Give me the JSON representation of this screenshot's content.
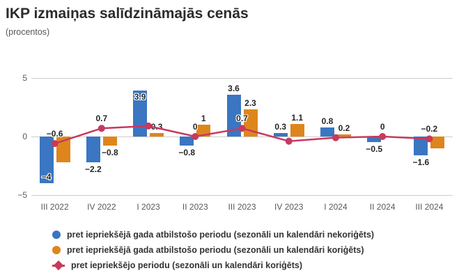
{
  "title": "IKP izmaiņas salīdzināmajās cenās",
  "subtitle": "(procentos)",
  "colors": {
    "blue": "#3a76c1",
    "orange": "#de861b",
    "red": "#c8395d",
    "grid": "#cccccc",
    "axis_text": "#595959",
    "label_text": "#262626"
  },
  "chart_data": {
    "type": "bar",
    "categories": [
      "III 2022",
      "IV 2022",
      "I 2023",
      "II 2023",
      "III 2023",
      "IV 2023",
      "I 2024",
      "II 2024",
      "III 2024"
    ],
    "y_axis": {
      "min": -5,
      "max": 5,
      "tick_values": [
        5,
        0,
        -5
      ],
      "tick_labels": [
        "5",
        "0",
        "−5"
      ]
    },
    "grid": "horizontal-only",
    "legend_position": "bottom-left",
    "series": [
      {
        "name": "pret iepriekšējā gada atbilstošo periodu (sezonāli un kalendāri nekoriģēts)",
        "type": "bar",
        "color_key": "blue",
        "values": [
          -4,
          -2.2,
          3.9,
          -0.8,
          3.6,
          0.3,
          0.8,
          -0.5,
          -1.6
        ],
        "labels": [
          "−4",
          "−2.2",
          "3.9",
          "−0.8",
          "3.6",
          "0.3",
          "0.8",
          "−0.5",
          "−1.6"
        ]
      },
      {
        "name": "pret iepriekšējā gada atbilstošo periodu (sezonāli un kalendāri koriģēts)",
        "type": "bar",
        "color_key": "orange",
        "values": [
          -2.2,
          -0.8,
          0.3,
          1,
          2.3,
          1.1,
          0.2,
          0,
          -1
        ],
        "labels": [
          null,
          "−0.8",
          "0.3",
          "1",
          "2.3",
          "1.1",
          "0.2",
          null,
          null
        ]
      },
      {
        "name": "pret iepriekšējo periodu (sezonāli un kalendāri koriģēts)",
        "type": "line",
        "color_key": "red",
        "values": [
          -0.6,
          0.7,
          0.9,
          0,
          0.7,
          -0.4,
          -0.1,
          0,
          -0.2
        ],
        "labels": [
          "−0.6",
          "0.7",
          null,
          "0",
          "0.7",
          null,
          null,
          "0",
          "−0.2"
        ]
      }
    ],
    "legend": [
      {
        "marker": "circle",
        "color_key": "blue",
        "label": "pret iepriekšējā gada atbilstošo periodu (sezonāli un kalendāri nekoriģēts)"
      },
      {
        "marker": "circle",
        "color_key": "orange",
        "label": "pret iepriekšējā gada atbilstošo periodu (sezonāli un kalendāri koriģēts)"
      },
      {
        "marker": "line-dot",
        "color_key": "red",
        "label": "pret iepriekšējo periodu (sezonāli un kalendāri koriģēts)"
      }
    ]
  }
}
